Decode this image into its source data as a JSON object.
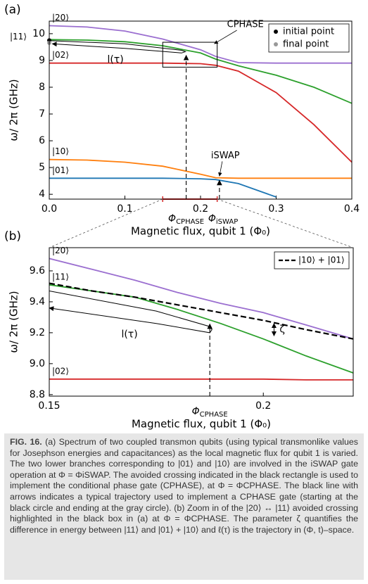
{
  "chart_data": [
    {
      "type": "line",
      "panel_label": "(a)",
      "xlabel": "Magnetic flux, qubit 1 (Φ₀)",
      "ylabel": "ω/ 2π (GHz)",
      "xlim": [
        0,
        0.4
      ],
      "ylim": [
        3.82,
        10.47
      ],
      "xticks": [
        {
          "value": 0,
          "label": "0.0"
        },
        0.1,
        0.2,
        0.3,
        0.4
      ],
      "yticks": [
        4,
        5,
        6,
        7,
        8,
        9,
        10
      ],
      "grid": false,
      "x": [
        0,
        0.05,
        0.1,
        0.15,
        0.2,
        0.22,
        0.25,
        0.3,
        0.35,
        0.4
      ],
      "series": [
        {
          "name": "|20⟩",
          "color": "#9b6fd0",
          "values": [
            10.3,
            10.25,
            10.1,
            9.8,
            9.4,
            9.15,
            8.92,
            8.9,
            8.9,
            8.9
          ]
        },
        {
          "name": "|11⟩",
          "color": "#2ca02c",
          "values": [
            9.78,
            9.76,
            9.7,
            9.55,
            9.28,
            9.05,
            8.8,
            8.45,
            8.0,
            7.4
          ]
        },
        {
          "name": "|02⟩",
          "color": "#d62728",
          "values": [
            8.9,
            8.9,
            8.9,
            8.9,
            8.88,
            8.82,
            8.6,
            7.8,
            6.6,
            5.2
          ]
        },
        {
          "name": "|10⟩",
          "color": "#ff7f0e",
          "values": [
            5.3,
            5.28,
            5.2,
            5.05,
            4.75,
            4.62,
            4.6,
            4.6,
            4.6,
            4.6
          ]
        },
        {
          "name": "|01⟩",
          "color": "#1f77b4",
          "values": [
            4.6,
            4.6,
            4.6,
            4.6,
            4.58,
            4.55,
            4.4,
            3.9,
            null,
            null
          ]
        }
      ],
      "markers": [
        {
          "name": "initial point",
          "color": "#000000",
          "x": 0,
          "y": 9.75
        },
        {
          "name": "final point",
          "color": "#999999",
          "x": 0,
          "y": 9.66
        }
      ],
      "legend_loc": "upper right",
      "trajectory": {
        "label": "l(τ)",
        "x": [
          0,
          0.1,
          0.175,
          0.18,
          0.175,
          0.1,
          0.004
        ],
        "y": [
          9.74,
          9.62,
          9.38,
          9.33,
          9.28,
          9.45,
          9.62
        ]
      },
      "box": {
        "label": "CPHASE",
        "x": [
          0.15,
          0.222
        ],
        "y": [
          8.75,
          9.68
        ]
      },
      "flux_points": [
        {
          "symbol": "Φ",
          "subscript": "CPHASE",
          "x": 0.181,
          "y": 9.27
        },
        {
          "symbol": "Φ",
          "subscript": "iSWAP",
          "x": 0.225,
          "y": 4.6,
          "gate": "iSWAP"
        }
      ]
    },
    {
      "type": "line",
      "panel_label": "(b)",
      "xlabel": "Magnetic flux, qubit 1 (Φ₀)",
      "ylabel": "ω/ 2π (GHz)",
      "xlim": [
        0.15,
        0.221
      ],
      "ylim": [
        8.79,
        9.75
      ],
      "xticks": [
        0.15,
        0.2
      ],
      "yticks": [
        8.8,
        {
          "value": 9,
          "label": "9.0"
        },
        9.2,
        9.4,
        9.6
      ],
      "grid": false,
      "x": [
        0.15,
        0.16,
        0.17,
        0.18,
        0.19,
        0.2,
        0.21,
        0.221
      ],
      "series": [
        {
          "name": "|20⟩",
          "color": "#9b6fd0",
          "values": [
            9.68,
            9.61,
            9.54,
            9.46,
            9.39,
            9.33,
            9.25,
            9.16
          ]
        },
        {
          "name": "|11⟩",
          "color": "#2ca02c",
          "values": [
            9.51,
            9.47,
            9.43,
            9.35,
            9.26,
            9.16,
            9.05,
            8.94
          ]
        },
        {
          "name": "|10⟩ + |01⟩",
          "color": "#000000",
          "dashed": true,
          "values": [
            9.52,
            9.47,
            9.43,
            9.38,
            9.33,
            9.28,
            9.22,
            9.16
          ]
        },
        {
          "name": "|02⟩",
          "color": "#d62728",
          "values": [
            8.9,
            8.9,
            8.9,
            8.9,
            8.9,
            8.9,
            8.895,
            8.895
          ]
        }
      ],
      "legend_loc": "upper right",
      "trajectory": {
        "label": "l(τ)",
        "x": [
          0.15,
          0.175,
          0.1875,
          0.188,
          0.1875,
          0.175,
          0.15
        ],
        "y": [
          9.47,
          9.34,
          9.24,
          9.22,
          9.2,
          9.26,
          9.36
        ]
      },
      "flux_points": [
        {
          "symbol": "Φ",
          "subscript": "CPHASE",
          "x": 0.1875,
          "y": 9.27
        }
      ],
      "zeta": {
        "label": "ζ",
        "x": 0.2025,
        "y": [
          9.26,
          9.18
        ]
      }
    }
  ],
  "caption": {
    "label": "FIG. 16.",
    "text": "(a) Spectrum of two coupled transmon qubits (using typical transmonlike values for Josephson energies and capacitances) as the local magnetic flux for qubit 1 is varied. The two lower branches corresponding to |01⟩ and |10⟩ are involved in the iSWAP gate operation at Φ = ΦiSWAP. The avoided crossing indicated in the black rectangle is used to implement the conditional phase gate (CPHASE), at Φ = ΦCPHASE. The black line with arrows indicates a typical trajectory used to implement a CPHASE gate (starting at the black circle and ending at the gray circle). (b) Zoom in of the |20⟩ ↔ |11⟩ avoided crossing highlighted in the black box in (a) at Φ = ΦCPHASE. The parameter ζ quantifies the difference in energy between |11⟩ and |01⟩ + |10⟩ and ℓ(τ) is the trajectory in (Φ, t)–space."
  }
}
